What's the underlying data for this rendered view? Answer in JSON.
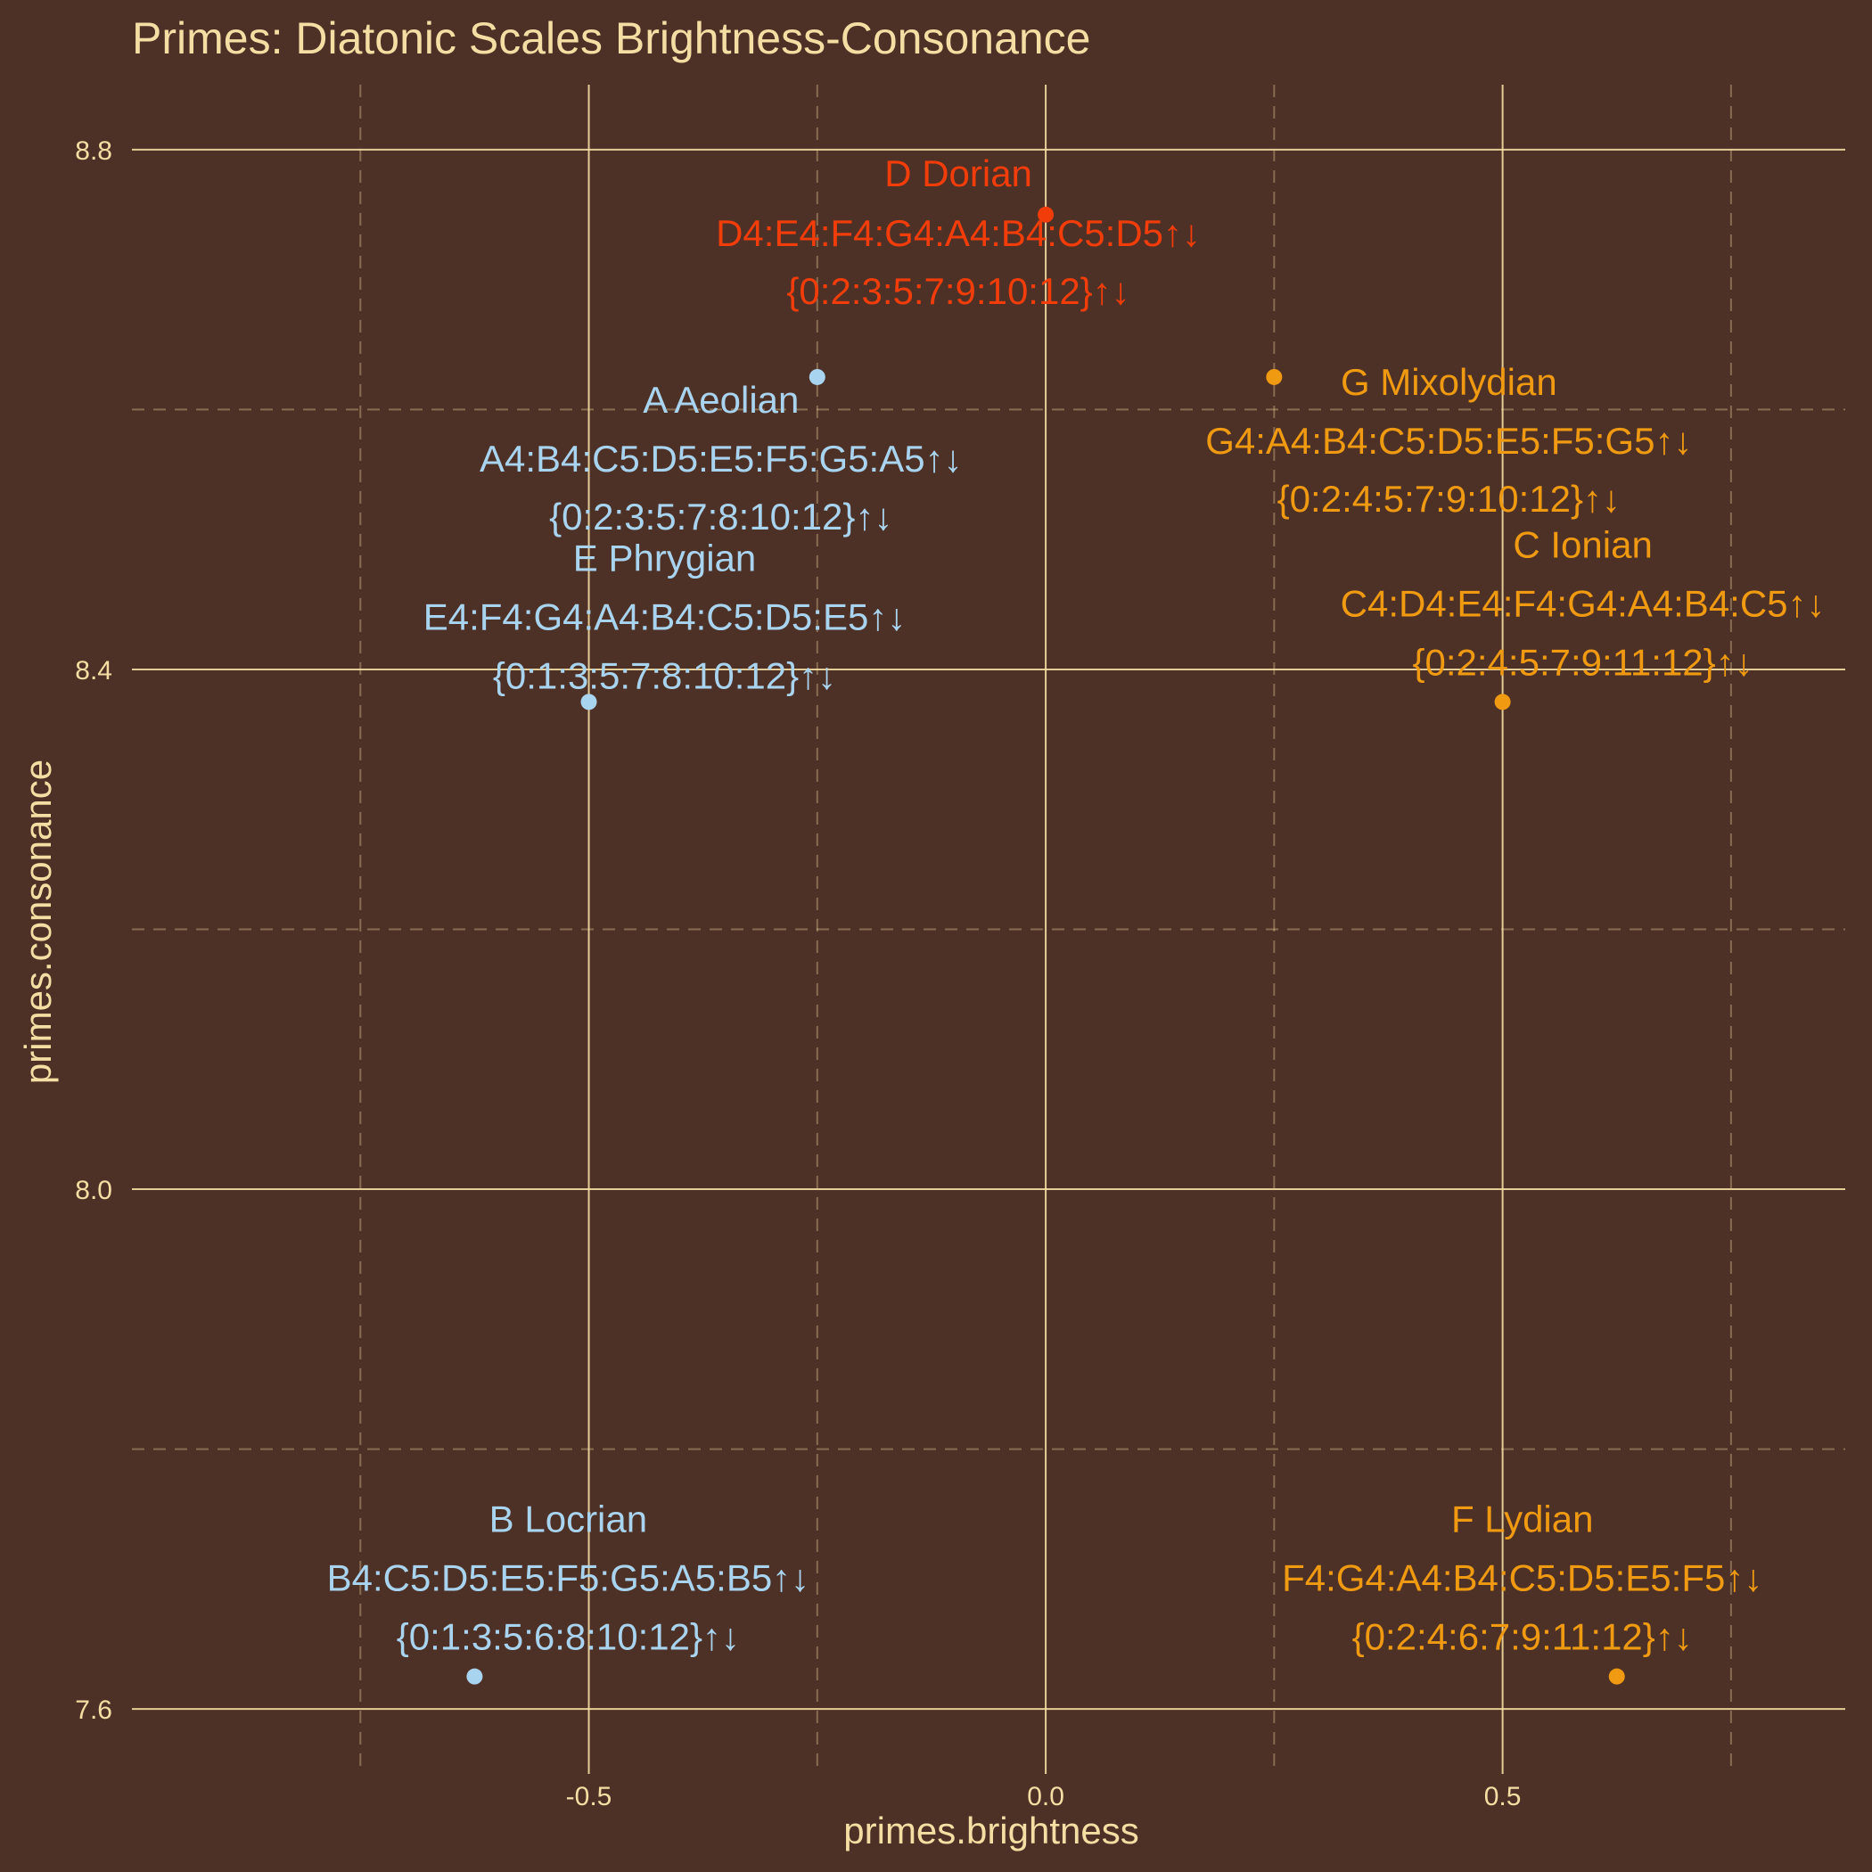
{
  "chart_data": {
    "type": "scatter",
    "title": "Primes: Diatonic Scales Brightness-Consonance",
    "xlabel": "primes.brightness",
    "ylabel": "primes.consonance",
    "xlim": [
      -1.0,
      0.875
    ],
    "ylim": [
      7.55,
      8.85
    ],
    "x_ticks": [
      -0.5,
      0.0,
      0.5
    ],
    "x_tick_labels": [
      "-0.5",
      "0.0",
      "0.5"
    ],
    "y_ticks": [
      7.6,
      8.0,
      8.4,
      8.8
    ],
    "y_tick_labels": [
      "7.6",
      "8.0",
      "8.4",
      "8.8"
    ],
    "grid": true,
    "colors": {
      "background": "#4e3126",
      "grid": "#f5dea3",
      "text": "#f5dea3",
      "dark": "#a9d4f0",
      "neutral": "#f23d0a",
      "bright": "#f09a12"
    },
    "points": [
      {
        "name": "D Dorian",
        "x": 0.0,
        "y": 8.75,
        "group": "neutral",
        "notes": "D4:E4:F4:G4:A4:B4:C5:D5↑↓",
        "steps": "{0:2:3:5:7:9:10:12}↑↓"
      },
      {
        "name": "A Aeolian",
        "x": -0.25,
        "y": 8.625,
        "group": "dark",
        "notes": "A4:B4:C5:D5:E5:F5:G5:A5↑↓",
        "steps": "{0:2:3:5:7:8:10:12}↑↓"
      },
      {
        "name": "G Mixolydian",
        "x": 0.25,
        "y": 8.625,
        "group": "bright",
        "notes": "G4:A4:B4:C5:D5:E5:F5:G5↑↓",
        "steps": "{0:2:4:5:7:9:10:12}↑↓"
      },
      {
        "name": "E Phrygian",
        "x": -0.5,
        "y": 8.375,
        "group": "dark",
        "notes": "E4:F4:G4:A4:B4:C5:D5:E5↑↓",
        "steps": "{0:1:3:5:7:8:10:12}↑↓"
      },
      {
        "name": "C Ionian",
        "x": 0.5,
        "y": 8.375,
        "group": "bright",
        "notes": "C4:D4:E4:F4:G4:A4:B4:C5↑↓",
        "steps": "{0:2:4:5:7:9:11:12}↑↓"
      },
      {
        "name": "B Locrian",
        "x": -0.625,
        "y": 7.625,
        "group": "dark",
        "notes": "B4:C5:D5:E5:F5:G5:A5:B5↑↓",
        "steps": "{0:1:3:5:6:8:10:12}↑↓"
      },
      {
        "name": "F Lydian",
        "x": 0.625,
        "y": 7.625,
        "group": "bright",
        "notes": "F4:G4:A4:B4:C5:D5:E5:F5↑↓",
        "steps": "{0:2:4:6:7:9:11:12}↑↓"
      }
    ]
  }
}
